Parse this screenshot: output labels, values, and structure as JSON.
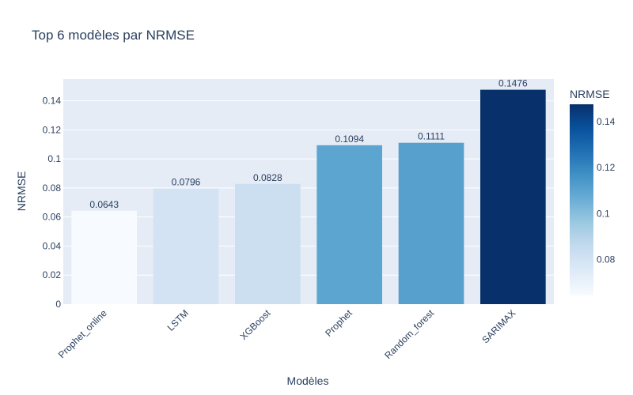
{
  "chart_data": {
    "type": "bar",
    "title": "Top 6 modèles par NRMSE",
    "xlabel": "Modèles",
    "ylabel": "NRMSE",
    "categories": [
      "Prophet_online",
      "LSTM",
      "XGBoost",
      "Prophet",
      "Random_forest",
      "SARIMAX"
    ],
    "values": [
      0.0643,
      0.0796,
      0.0828,
      0.1094,
      0.1111,
      0.1476
    ],
    "data_labels": [
      "0.0643",
      "0.0796",
      "0.0828",
      "0.1094",
      "0.1111",
      "0.1476"
    ],
    "ylim": [
      0,
      0.155
    ],
    "yticks": [
      0,
      0.02,
      0.04,
      0.06,
      0.08,
      0.1,
      0.12,
      0.14
    ],
    "ytick_labels": [
      "0",
      "0.02",
      "0.04",
      "0.06",
      "0.08",
      "0.1",
      "0.12",
      "0.14"
    ],
    "grid": true,
    "colorscale": "Blues",
    "colorbar": {
      "title": "NRMSE",
      "range": [
        0.0643,
        0.1476
      ],
      "ticks": [
        0.08,
        0.1,
        0.12,
        0.14
      ],
      "tick_labels": [
        "0.08",
        "0.1",
        "0.12",
        "0.14"
      ]
    },
    "plot_background": "#e5ecf6",
    "text_color": "#2a3f5f"
  }
}
